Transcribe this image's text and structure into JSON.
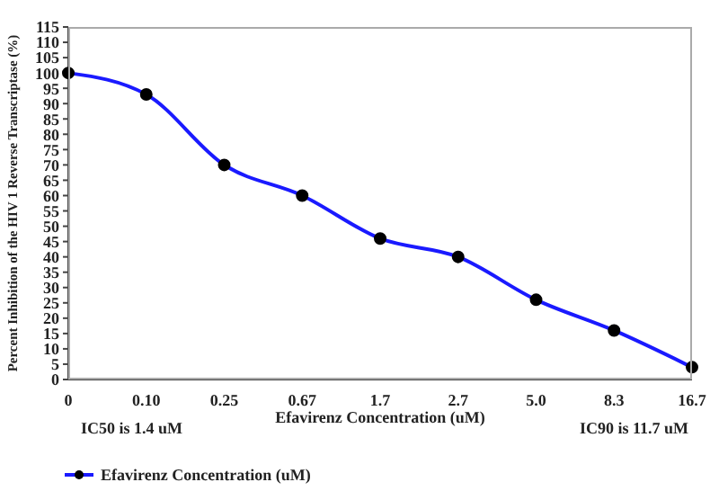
{
  "chart_data": {
    "type": "line",
    "xlabel": "Efavirenz Concentration (uM)",
    "ylabel": "Percent Inhibition of the HIV 1 Reverse Transcriptase (%)",
    "categories": [
      "0",
      "0.10",
      "0.25",
      "0.67",
      "1.7",
      "2.7",
      "5.0",
      "8.3",
      "16.7"
    ],
    "series": [
      {
        "name": "Efavirenz Concentration (uM)",
        "color": "#1a1aff",
        "values": [
          100,
          93,
          70,
          60,
          46,
          40,
          26,
          16,
          4
        ]
      }
    ],
    "ylim": [
      0,
      115
    ],
    "yticks": [
      0,
      5,
      10,
      15,
      20,
      25,
      30,
      35,
      40,
      45,
      50,
      55,
      60,
      65,
      70,
      75,
      80,
      85,
      90,
      95,
      100,
      105,
      110,
      115
    ],
    "grid": false,
    "legend": "bottom left",
    "marker": "circle",
    "line_style": "solid",
    "annotations": [
      "IC50 is 1.4 uM",
      "IC90 is 11.7 uM"
    ]
  }
}
